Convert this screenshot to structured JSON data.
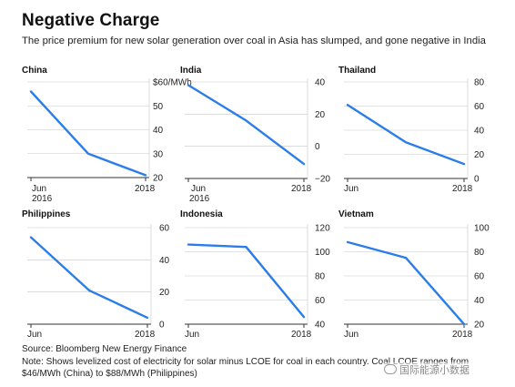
{
  "header": {
    "title": "Negative Charge",
    "subtitle": "The price premium for new solar generation over coal in Asia has slumped, and gone negative in India"
  },
  "footer": {
    "source": "Source: Bloomberg New Energy Finance",
    "note": "Note: Shows levelized cost of electricity for solar minus LCOE for coal in each country. Coal LCOE ranges from $46/MWh (China) to $88/MWh (Philippines)",
    "watermark": "国际能源小数据"
  },
  "style": {
    "line_color": "#2b7de9",
    "axis_color": "#333333",
    "grid_color": "#c8c8c8"
  },
  "chart_data": [
    {
      "type": "line",
      "title": "China",
      "x": [
        "Jun 2016",
        "",
        "2018"
      ],
      "values": [
        56,
        30,
        21
      ],
      "ylim": [
        20,
        60
      ],
      "yticks": [
        20,
        30,
        40,
        50,
        60
      ],
      "ytick_labels": [
        "20",
        "30",
        "40",
        "50",
        "$60/MWh"
      ],
      "xtick_labels": [
        "Jun\n2016",
        "2018"
      ]
    },
    {
      "type": "line",
      "title": "India",
      "x": [
        "Jun 2016",
        "",
        "2018"
      ],
      "values": [
        38,
        16,
        -11
      ],
      "ylim": [
        -20,
        40
      ],
      "yticks": [
        -20,
        0,
        20,
        40
      ],
      "ytick_labels": [
        "−20",
        "0",
        "20",
        "40"
      ],
      "xtick_labels": [
        "Jun\n2016",
        "2018"
      ]
    },
    {
      "type": "line",
      "title": "Thailand",
      "x": [
        "Jun 2016",
        "",
        "2018"
      ],
      "values": [
        61,
        30,
        12
      ],
      "ylim": [
        0,
        80
      ],
      "yticks": [
        0,
        20,
        40,
        60,
        80
      ],
      "ytick_labels": [
        "0",
        "20",
        "40",
        "60",
        "80"
      ],
      "xtick_labels": [
        "Jun",
        "2018"
      ]
    },
    {
      "type": "line",
      "title": "Philippines",
      "x": [
        "Jun",
        "",
        "2018"
      ],
      "values": [
        54,
        21,
        4
      ],
      "ylim": [
        0,
        60
      ],
      "yticks": [
        0,
        20,
        40,
        60
      ],
      "ytick_labels": [
        "0",
        "20",
        "40",
        "60"
      ],
      "xtick_labels": [
        "Jun",
        "2018"
      ]
    },
    {
      "type": "line",
      "title": "Indonesia",
      "x": [
        "Jun",
        "",
        "2018"
      ],
      "values": [
        106,
        104,
        46
      ],
      "ylim": [
        40,
        120
      ],
      "yticks": [
        40,
        60,
        80,
        100,
        120
      ],
      "ytick_labels": [
        "40",
        "60",
        "80",
        "100",
        "120"
      ],
      "xtick_labels": [
        "Jun",
        "2018"
      ]
    },
    {
      "type": "line",
      "title": "Vietnam",
      "x": [
        "Jun",
        "",
        "2018"
      ],
      "values": [
        88,
        75,
        20
      ],
      "ylim": [
        20,
        100
      ],
      "yticks": [
        20,
        40,
        60,
        80,
        100
      ],
      "ytick_labels": [
        "20",
        "40",
        "60",
        "80",
        "100"
      ],
      "xtick_labels": [
        "Jun",
        "2018"
      ]
    }
  ]
}
